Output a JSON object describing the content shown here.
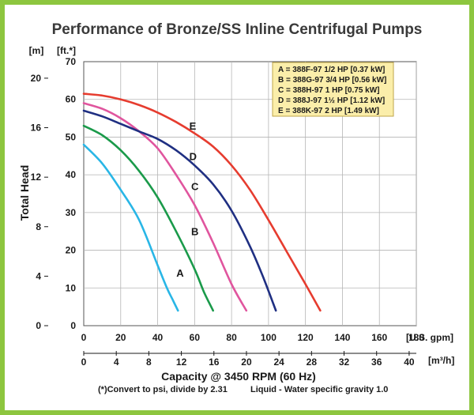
{
  "chart_data": {
    "type": "line",
    "title": "Performance of Bronze/SS Inline Centrifugal Pumps",
    "ylabel": "Total Head",
    "xlabel": "Capacity @ 3450 RPM (60 Hz)",
    "y_unit_left": "[m]",
    "y_unit_right": "[ft.*]",
    "x_unit_top": "[U.S. gpm]",
    "x_unit_bottom": "[m³/h]",
    "ft_ticks": [
      0,
      10,
      20,
      30,
      40,
      50,
      60,
      70
    ],
    "m_ticks": [
      0,
      4,
      8,
      12,
      16,
      20
    ],
    "gpm_ticks": [
      0,
      20,
      40,
      60,
      80,
      100,
      120,
      140,
      160,
      180
    ],
    "m3h_ticks": [
      0,
      4,
      8,
      12,
      16,
      20,
      24,
      28,
      32,
      36,
      40
    ],
    "xlim_gpm": [
      0,
      180
    ],
    "ylim_ft": [
      0,
      70
    ],
    "grid": true,
    "footnote_left": "(*)Convert to psi, divide by 2.31",
    "footnote_right": "Liquid - Water specific gravity 1.0",
    "legend": [
      "A = 388F-97 1/2 HP [0.37 kW]",
      "B = 388G-97 3/4 HP [0.56 kW]",
      "C = 388H-97 1 HP [0.75 kW]",
      "D = 388J-97 1½ HP [1.12 kW]",
      "E = 388K-97 2 HP [1.49 kW]"
    ],
    "series": [
      {
        "name": "A",
        "color": "#29b6e6",
        "label_at": [
          48,
          14
        ],
        "x": [
          0,
          10,
          20,
          30,
          40,
          45,
          48,
          51
        ],
        "y": [
          48,
          43,
          36,
          28,
          16,
          10,
          7,
          4
        ]
      },
      {
        "name": "B",
        "color": "#1a9a4a",
        "label_at": [
          56,
          25
        ],
        "x": [
          0,
          10,
          20,
          30,
          40,
          50,
          60,
          65,
          70
        ],
        "y": [
          53,
          50.5,
          46.5,
          41,
          34,
          25,
          15,
          9,
          4
        ]
      },
      {
        "name": "C",
        "color": "#e0559e",
        "label_at": [
          56,
          37
        ],
        "x": [
          0,
          10,
          20,
          30,
          40,
          50,
          60,
          70,
          80,
          88
        ],
        "y": [
          59,
          57.5,
          55,
          51.5,
          47,
          40,
          32,
          22,
          11,
          4
        ]
      },
      {
        "name": "D",
        "color": "#1f2f82",
        "label_at": [
          55,
          45
        ],
        "x": [
          0,
          10,
          20,
          30,
          40,
          50,
          60,
          70,
          80,
          90,
          97,
          104
        ],
        "y": [
          57,
          55.5,
          53.5,
          51.5,
          49.5,
          46.5,
          42.5,
          37.5,
          30.5,
          21,
          13,
          4
        ]
      },
      {
        "name": "E",
        "color": "#e63c2f",
        "label_at": [
          55,
          53
        ],
        "x": [
          0,
          10,
          20,
          30,
          40,
          50,
          60,
          70,
          80,
          90,
          100,
          110,
          120,
          128
        ],
        "y": [
          61.5,
          61,
          60,
          58.5,
          56.5,
          54,
          51,
          47.5,
          42.5,
          36,
          28,
          19.5,
          11,
          4
        ]
      }
    ]
  }
}
